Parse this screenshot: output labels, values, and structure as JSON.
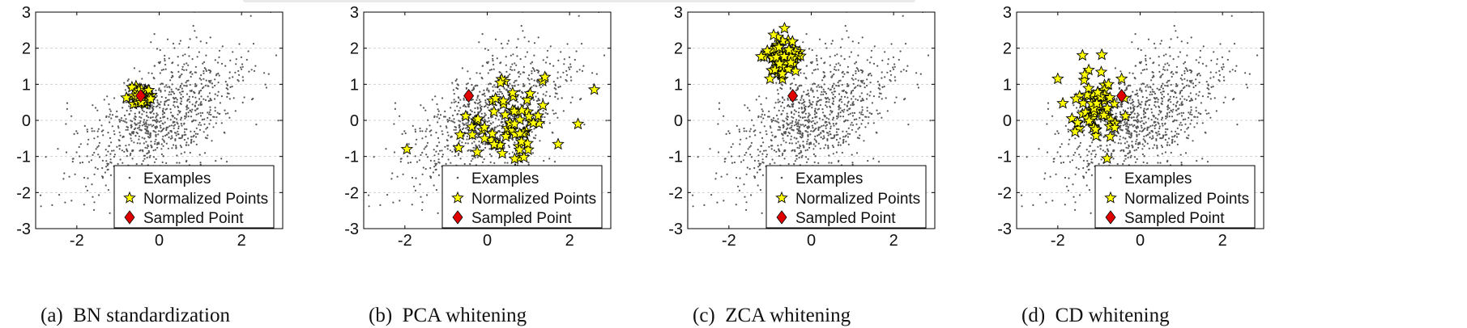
{
  "chart_data": [
    {
      "type": "scatter",
      "caption": "(a)  BN standardization",
      "xlim": [
        -3,
        3
      ],
      "ylim": [
        -3,
        3
      ],
      "xticks": [
        -2,
        0,
        2
      ],
      "xtick_labels": [
        "-2",
        "0",
        "2"
      ],
      "yticks": [
        -3,
        -2,
        -1,
        0,
        1,
        2,
        3
      ],
      "ytick_labels": [
        "-3",
        "-2",
        "-1",
        "0",
        "1",
        "2",
        "3"
      ],
      "grid": "dashed horizontal",
      "legend": {
        "position": "bottom-right",
        "entries": [
          "Examples",
          "Normalized Points",
          "Sampled Point"
        ]
      },
      "series": [
        {
          "name": "Examples",
          "marker": "dot",
          "color": "#555555",
          "distribution": "correlated gaussian",
          "mean": [
            0,
            0
          ],
          "std": [
            1.0,
            1.0
          ],
          "corr": 0.55,
          "count": 1000
        },
        {
          "name": "Normalized Points",
          "marker": "star",
          "color": "#ffff00",
          "distribution": "gaussian",
          "mean": [
            -0.45,
            0.68
          ],
          "std": [
            0.13,
            0.13
          ],
          "count": 50
        },
        {
          "name": "Sampled Point",
          "marker": "diamond",
          "color": "#e00000",
          "points": [
            [
              -0.45,
              0.68
            ]
          ]
        }
      ]
    },
    {
      "type": "scatter",
      "caption": "(b)  PCA whitening",
      "xlim": [
        -3,
        3
      ],
      "ylim": [
        -3,
        3
      ],
      "xticks": [
        -2,
        0,
        2
      ],
      "xtick_labels": [
        "-2",
        "0",
        "2"
      ],
      "yticks": [
        -3,
        -2,
        -1,
        0,
        1,
        2,
        3
      ],
      "ytick_labels": [
        "-3",
        "-2",
        "-1",
        "0",
        "1",
        "2",
        "3"
      ],
      "grid": "dashed horizontal",
      "legend": {
        "position": "bottom-right",
        "entries": [
          "Examples",
          "Normalized Points",
          "Sampled Point"
        ]
      },
      "series": [
        {
          "name": "Examples",
          "marker": "dot",
          "color": "#555555",
          "distribution": "correlated gaussian",
          "mean": [
            0,
            0
          ],
          "std": [
            1.0,
            1.0
          ],
          "corr": 0.55,
          "count": 1000
        },
        {
          "name": "Normalized Points",
          "marker": "star",
          "color": "#ffff00",
          "distribution": "gaussian",
          "mean": [
            0.6,
            -0.15
          ],
          "std": [
            0.55,
            0.5
          ],
          "count": 70,
          "extra_points": [
            [
              -1.95,
              -0.8
            ],
            [
              2.6,
              0.85
            ],
            [
              1.4,
              1.2
            ]
          ]
        },
        {
          "name": "Sampled Point",
          "marker": "diamond",
          "color": "#e00000",
          "points": [
            [
              -0.45,
              0.68
            ]
          ]
        }
      ]
    },
    {
      "type": "scatter",
      "caption": "(c)  ZCA whitening",
      "xlim": [
        -3,
        3
      ],
      "ylim": [
        -3,
        3
      ],
      "xticks": [
        -2,
        0,
        2
      ],
      "xtick_labels": [
        "-2",
        "0",
        "2"
      ],
      "yticks": [
        -3,
        -2,
        -1,
        0,
        1,
        2,
        3
      ],
      "ytick_labels": [
        "-3",
        "-2",
        "-1",
        "0",
        "1",
        "2",
        "3"
      ],
      "grid": "dashed horizontal",
      "legend": {
        "position": "bottom-right",
        "entries": [
          "Examples",
          "Normalized Points",
          "Sampled Point"
        ]
      },
      "series": [
        {
          "name": "Examples",
          "marker": "dot",
          "color": "#555555",
          "distribution": "correlated gaussian",
          "mean": [
            0,
            0
          ],
          "std": [
            1.0,
            1.0
          ],
          "corr": 0.55,
          "count": 1000
        },
        {
          "name": "Normalized Points",
          "marker": "star",
          "color": "#ffff00",
          "distribution": "gaussian",
          "mean": [
            -0.7,
            1.75
          ],
          "std": [
            0.22,
            0.28
          ],
          "count": 70,
          "extra_points": [
            [
              -0.65,
              2.55
            ],
            [
              -1.0,
              1.15
            ]
          ]
        },
        {
          "name": "Sampled Point",
          "marker": "diamond",
          "color": "#e00000",
          "points": [
            [
              -0.45,
              0.68
            ]
          ]
        }
      ]
    },
    {
      "type": "scatter",
      "caption": "(d)  CD whitening",
      "xlim": [
        -3,
        3
      ],
      "ylim": [
        -3,
        3
      ],
      "xticks": [
        -2,
        0,
        2
      ],
      "xtick_labels": [
        "-2",
        "0",
        "2"
      ],
      "yticks": [
        -3,
        -2,
        -1,
        0,
        1,
        2,
        3
      ],
      "ytick_labels": [
        "-3",
        "-2",
        "-1",
        "0",
        "1",
        "2",
        "3"
      ],
      "grid": "dashed horizontal",
      "legend": {
        "position": "bottom-right",
        "entries": [
          "Examples",
          "Normalized Points",
          "Sampled Point"
        ]
      },
      "series": [
        {
          "name": "Examples",
          "marker": "dot",
          "color": "#555555",
          "distribution": "correlated gaussian",
          "mean": [
            0,
            0
          ],
          "std": [
            1.0,
            1.0
          ],
          "corr": 0.55,
          "count": 1000
        },
        {
          "name": "Normalized Points",
          "marker": "star",
          "color": "#ffff00",
          "distribution": "gaussian",
          "mean": [
            -1.0,
            0.55
          ],
          "std": [
            0.28,
            0.5
          ],
          "count": 70,
          "extra_points": [
            [
              -2.0,
              1.15
            ],
            [
              -1.4,
              1.8
            ],
            [
              -0.45,
              1.15
            ]
          ]
        },
        {
          "name": "Sampled Point",
          "marker": "diamond",
          "color": "#e00000",
          "points": [
            [
              -0.45,
              0.68
            ]
          ]
        }
      ]
    }
  ]
}
